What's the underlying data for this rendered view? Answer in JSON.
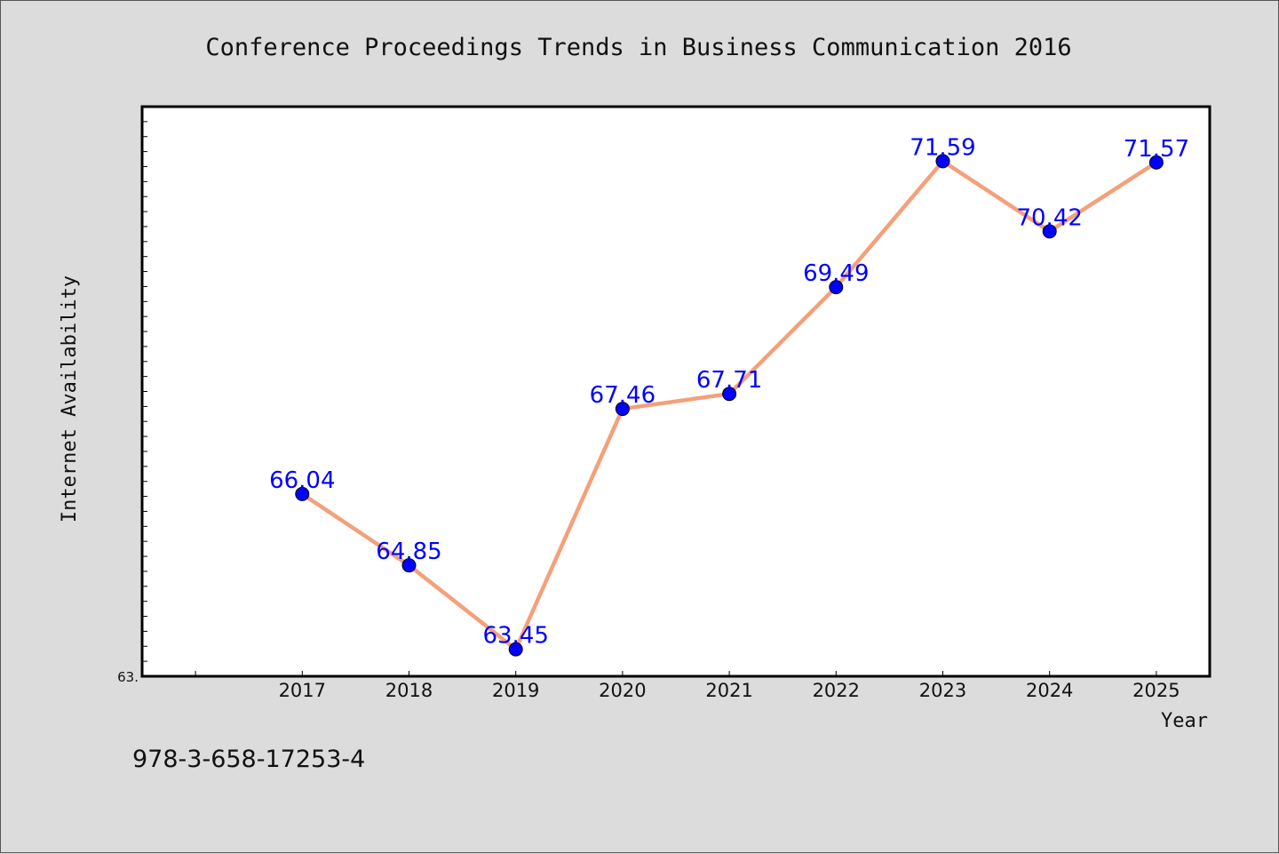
{
  "footnote": "978-3-658-17253-4",
  "chart_data": {
    "type": "line",
    "title": "Conference Proceedings Trends in Business Communication 2016",
    "xlabel": "Year",
    "ylabel": "Internet Availability",
    "x": [
      "2017",
      "2018",
      "2019",
      "2020",
      "2021",
      "2022",
      "2023",
      "2024",
      "2025"
    ],
    "series": [
      {
        "values": [
          66.04,
          64.85,
          63.45,
          67.46,
          67.71,
          69.49,
          71.59,
          70.42,
          71.57
        ],
        "labels": [
          "66.04",
          "64.85",
          "63.45",
          "67.46",
          "67.71",
          "69.49",
          "71.59",
          "70.42",
          "71.57"
        ],
        "line_color": "#f4a07a",
        "marker_color": "#0000ff"
      }
    ],
    "ylim": [
      63.0,
      72.5
    ],
    "xlim": [
      2015.5,
      2025.5
    ],
    "ytick_labels": [
      "63."
    ],
    "grid": false,
    "legend": "none"
  }
}
